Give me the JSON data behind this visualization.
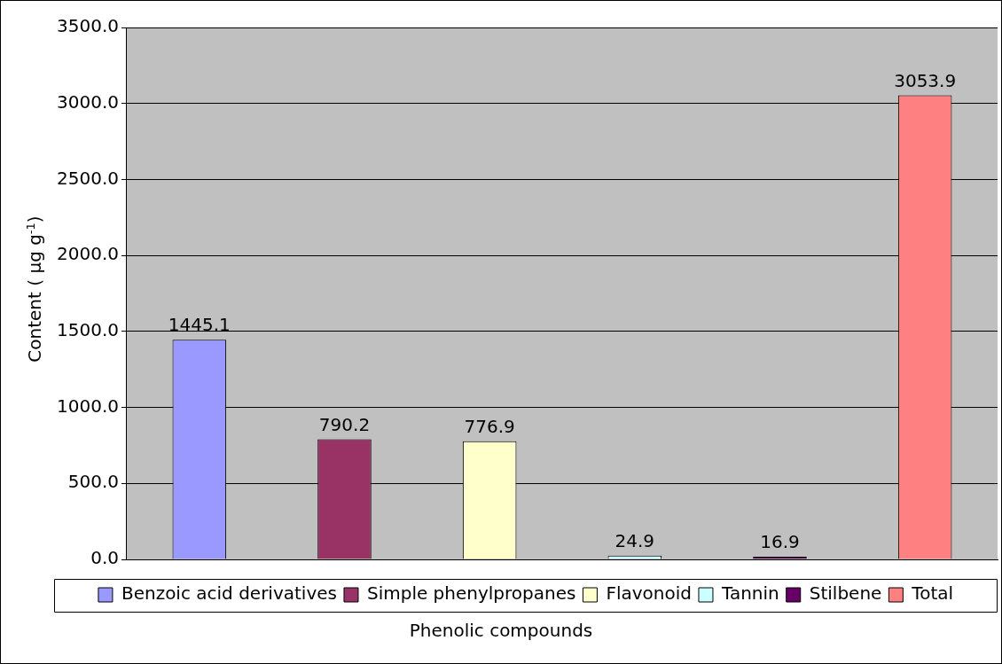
{
  "chart_data": {
    "type": "bar",
    "xlabel": "Phenolic compounds",
    "ylabel": "Content ( μg g$^{-1}$)",
    "categories": [
      null,
      null,
      null,
      null,
      null,
      null
    ],
    "series": [
      {
        "name": "Benzoic acid derivatives",
        "color": "#9999ff",
        "values": [
          1445.1,
          null,
          null,
          null,
          null,
          null
        ]
      },
      {
        "name": "Simple phenylpropanes",
        "color": "#993366",
        "values": [
          null,
          790.2,
          null,
          null,
          null,
          null
        ]
      },
      {
        "name": "Flavonoid",
        "color": "#ffffcc",
        "values": [
          null,
          null,
          776.9,
          null,
          null,
          null
        ]
      },
      {
        "name": "Tannin",
        "color": "#ccffff",
        "values": [
          null,
          null,
          null,
          24.9,
          null,
          null
        ]
      },
      {
        "name": "Stilbene",
        "color": "#660066",
        "values": [
          null,
          null,
          null,
          null,
          16.9,
          null
        ]
      },
      {
        "name": "Total",
        "color": "#ff8080",
        "values": [
          null,
          null,
          null,
          null,
          null,
          3053.9
        ]
      }
    ],
    "ylim": [
      0,
      3500
    ],
    "yticks": [
      {
        "value": 0,
        "label": "0.0"
      },
      {
        "value": 500,
        "label": "500.0"
      },
      {
        "value": 1000,
        "label": "1000.0"
      },
      {
        "value": 1500,
        "label": "1500.0"
      },
      {
        "value": 2000,
        "label": "2000.0"
      },
      {
        "value": 2500,
        "label": "2500.0"
      },
      {
        "value": 3000,
        "label": "3000.0"
      },
      {
        "value": 3500,
        "label": "3500.0"
      }
    ],
    "grid": "y",
    "legend": "bottom",
    "data_labels": true
  }
}
